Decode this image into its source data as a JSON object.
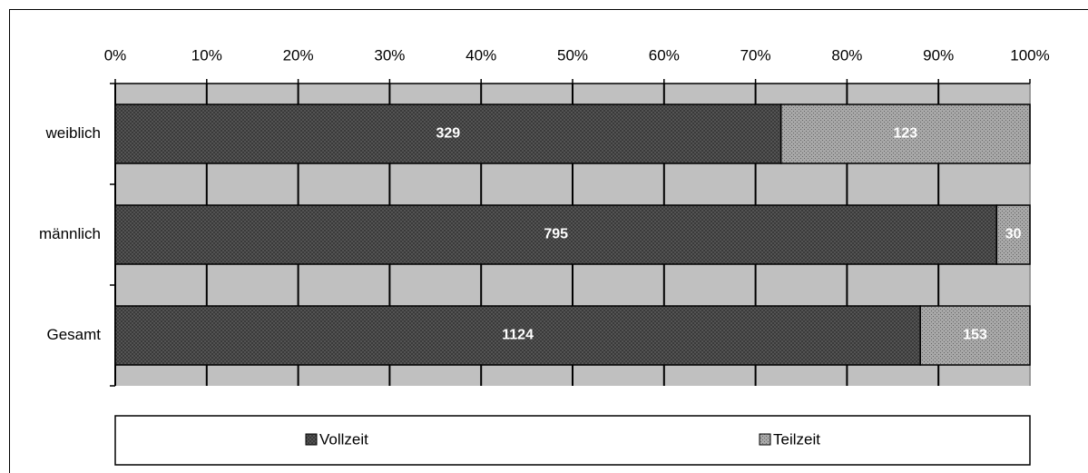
{
  "chart_data": {
    "type": "bar",
    "orientation": "horizontal",
    "stacking": "percent",
    "categories": [
      "weiblich",
      "männlich",
      "Gesamt"
    ],
    "series": [
      {
        "name": "Vollzeit",
        "color": "#5a5a5a",
        "values": [
          329,
          795,
          1124
        ]
      },
      {
        "name": "Teilzeit",
        "color": "#a8a8a8",
        "values": [
          123,
          30,
          153
        ]
      }
    ],
    "xlim": [
      0,
      100
    ],
    "xticks": [
      {
        "value": 0,
        "label": "0%"
      },
      {
        "value": 10,
        "label": "10%"
      },
      {
        "value": 20,
        "label": "20%"
      },
      {
        "value": 30,
        "label": "30%"
      },
      {
        "value": 40,
        "label": "40%"
      },
      {
        "value": 50,
        "label": "50%"
      },
      {
        "value": 60,
        "label": "60%"
      },
      {
        "value": 70,
        "label": "70%"
      },
      {
        "value": 80,
        "label": "80%"
      },
      {
        "value": 90,
        "label": "90%"
      },
      {
        "value": 100,
        "label": "100%"
      }
    ],
    "grid": true,
    "legend": "bottom",
    "plot_background": "#c0c0c0"
  }
}
